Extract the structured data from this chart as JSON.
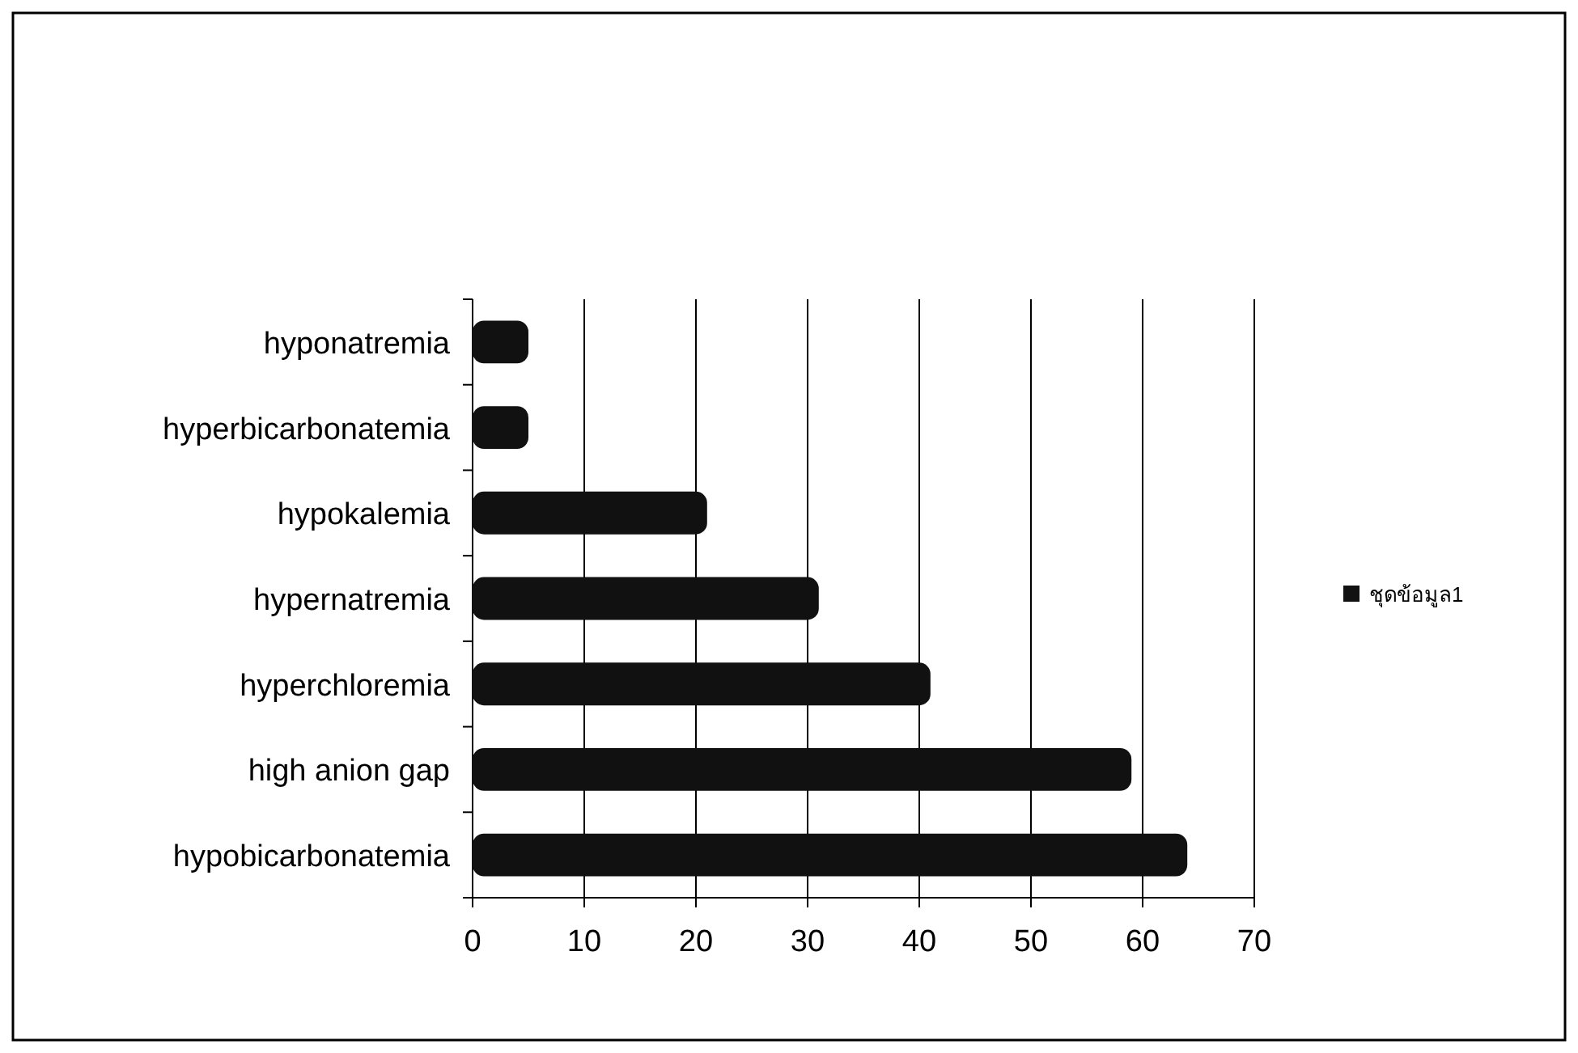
{
  "chart_data": {
    "type": "bar",
    "orientation": "horizontal",
    "categories": [
      "hyponatremia",
      "hyperbicarbonatemia",
      "hypokalemia",
      "hypernatremia",
      "hyperchloremia",
      "high anion gap",
      "hypobicarbonatemia"
    ],
    "series": [
      {
        "name": "ชุดข้อมูล1",
        "color": "#111111",
        "values": [
          5,
          5,
          21,
          31,
          41,
          59,
          64
        ]
      }
    ],
    "xlim": [
      0,
      70
    ],
    "xticks": [
      0,
      10,
      20,
      30,
      40,
      50,
      60,
      70
    ],
    "grid": "x",
    "legend": "right"
  }
}
